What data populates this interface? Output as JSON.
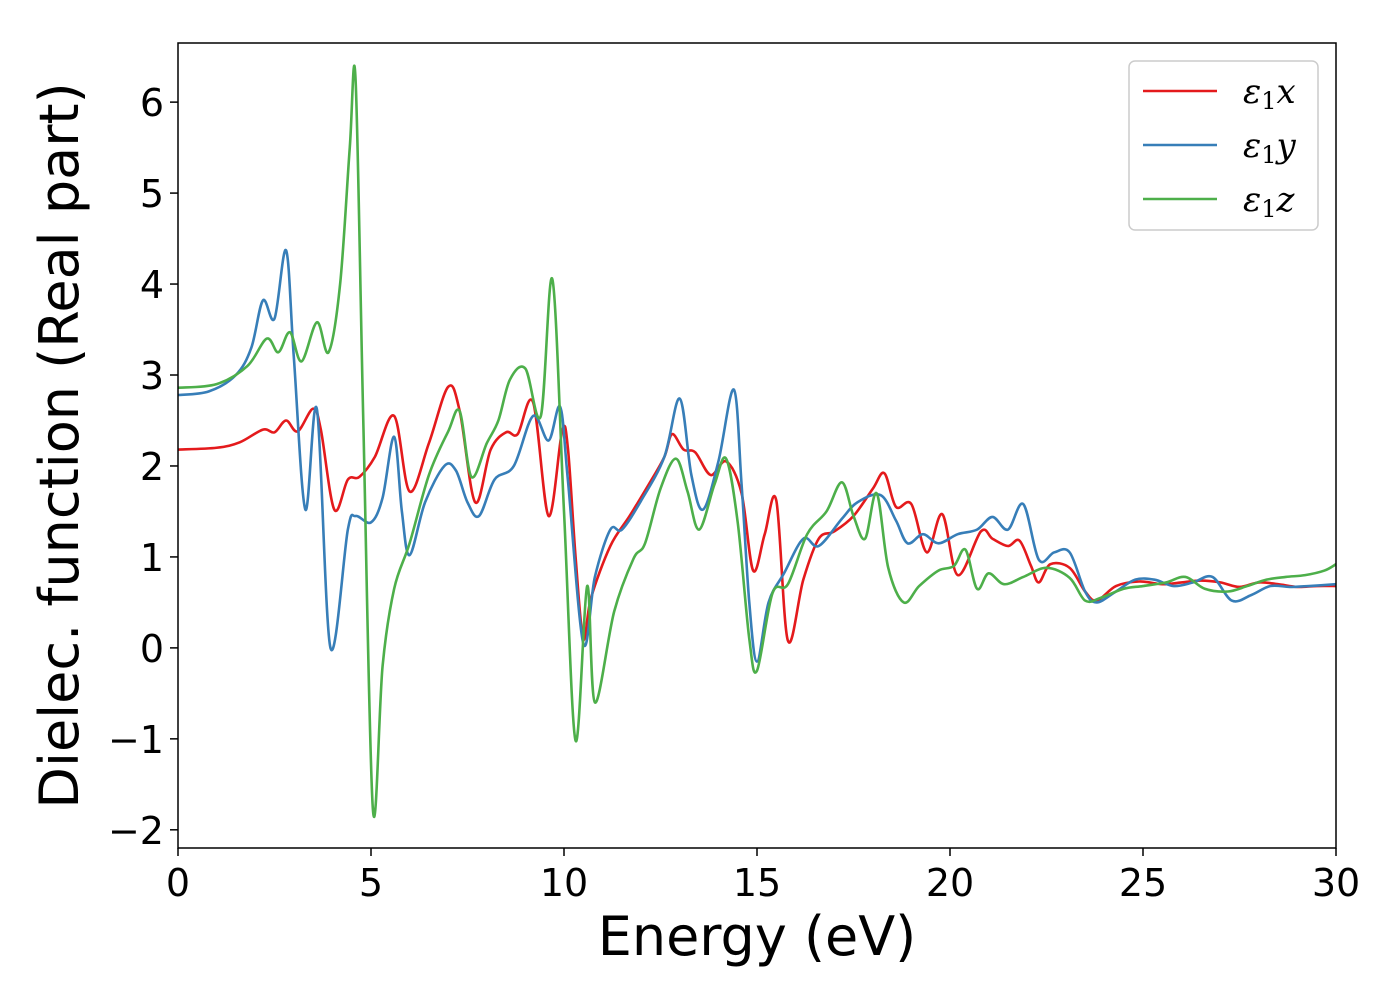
{
  "chart_data": {
    "type": "line",
    "title": "",
    "xlabel": "Energy (eV)",
    "ylabel": "Dielec. function (Real part)",
    "xlim": [
      0,
      30
    ],
    "ylim": [
      -2.2,
      6.65
    ],
    "xticks": [
      0,
      5,
      10,
      15,
      20,
      25,
      30
    ],
    "xtick_labels": [
      "0",
      "5",
      "10",
      "15",
      "20",
      "25",
      "30"
    ],
    "yticks": [
      -2,
      -1,
      0,
      1,
      2,
      3,
      4,
      5,
      6
    ],
    "ytick_labels": [
      "−2",
      "−1",
      "0",
      "1",
      "2",
      "3",
      "4",
      "5",
      "6"
    ],
    "grid": false,
    "legend_position": "top-right",
    "series": [
      {
        "name": "ε1x",
        "legend": {
          "base": "ε",
          "sub": "1",
          "suffix": "x"
        },
        "color": "#e41a1c",
        "points": [
          [
            0,
            2.18
          ],
          [
            1,
            2.2
          ],
          [
            1.6,
            2.26
          ],
          [
            2.2,
            2.4
          ],
          [
            2.5,
            2.37
          ],
          [
            2.8,
            2.5
          ],
          [
            3.1,
            2.38
          ],
          [
            3.5,
            2.63
          ],
          [
            3.7,
            2.4
          ],
          [
            4.05,
            1.52
          ],
          [
            4.4,
            1.85
          ],
          [
            4.7,
            1.88
          ],
          [
            5.1,
            2.1
          ],
          [
            5.6,
            2.55
          ],
          [
            6.0,
            1.72
          ],
          [
            6.5,
            2.25
          ],
          [
            7.0,
            2.87
          ],
          [
            7.3,
            2.6
          ],
          [
            7.7,
            1.6
          ],
          [
            8.1,
            2.18
          ],
          [
            8.5,
            2.37
          ],
          [
            8.8,
            2.35
          ],
          [
            9.2,
            2.7
          ],
          [
            9.6,
            1.45
          ],
          [
            9.95,
            2.38
          ],
          [
            10.1,
            2.2
          ],
          [
            10.3,
            1.0
          ],
          [
            10.5,
            0.1
          ],
          [
            10.7,
            0.55
          ],
          [
            11.2,
            1.12
          ],
          [
            11.7,
            1.45
          ],
          [
            12.2,
            1.8
          ],
          [
            12.6,
            2.1
          ],
          [
            12.8,
            2.35
          ],
          [
            13.1,
            2.18
          ],
          [
            13.4,
            2.15
          ],
          [
            13.8,
            1.9
          ],
          [
            14.2,
            2.05
          ],
          [
            14.6,
            1.7
          ],
          [
            14.9,
            0.85
          ],
          [
            15.2,
            1.25
          ],
          [
            15.5,
            1.62
          ],
          [
            15.8,
            0.08
          ],
          [
            16.2,
            0.75
          ],
          [
            16.6,
            1.2
          ],
          [
            17.0,
            1.28
          ],
          [
            17.5,
            1.45
          ],
          [
            18.0,
            1.75
          ],
          [
            18.3,
            1.92
          ],
          [
            18.6,
            1.55
          ],
          [
            19.0,
            1.58
          ],
          [
            19.4,
            1.05
          ],
          [
            19.8,
            1.47
          ],
          [
            20.2,
            0.8
          ],
          [
            20.8,
            1.28
          ],
          [
            21.1,
            1.2
          ],
          [
            21.5,
            1.12
          ],
          [
            21.8,
            1.18
          ],
          [
            22.1,
            0.9
          ],
          [
            22.3,
            0.72
          ],
          [
            22.6,
            0.92
          ],
          [
            23.1,
            0.88
          ],
          [
            23.5,
            0.62
          ],
          [
            23.8,
            0.52
          ],
          [
            24.3,
            0.68
          ],
          [
            24.9,
            0.73
          ],
          [
            25.5,
            0.7
          ],
          [
            26.0,
            0.72
          ],
          [
            26.5,
            0.74
          ],
          [
            27.0,
            0.72
          ],
          [
            27.5,
            0.67
          ],
          [
            28.0,
            0.72
          ],
          [
            28.5,
            0.7
          ],
          [
            29.0,
            0.67
          ],
          [
            29.5,
            0.68
          ],
          [
            30,
            0.68
          ]
        ]
      },
      {
        "name": "ε1y",
        "legend": {
          "base": "ε",
          "sub": "1",
          "suffix": "y"
        },
        "color": "#377eb8",
        "points": [
          [
            0,
            2.78
          ],
          [
            0.8,
            2.82
          ],
          [
            1.5,
            3.0
          ],
          [
            1.9,
            3.3
          ],
          [
            2.2,
            3.82
          ],
          [
            2.5,
            3.62
          ],
          [
            2.8,
            4.37
          ],
          [
            3.0,
            3.2
          ],
          [
            3.3,
            1.52
          ],
          [
            3.6,
            2.62
          ],
          [
            3.95,
            0.0
          ],
          [
            4.4,
            1.3
          ],
          [
            4.6,
            1.45
          ],
          [
            5.0,
            1.38
          ],
          [
            5.3,
            1.65
          ],
          [
            5.6,
            2.32
          ],
          [
            5.8,
            1.5
          ],
          [
            6.0,
            1.02
          ],
          [
            6.4,
            1.6
          ],
          [
            6.9,
            2.0
          ],
          [
            7.2,
            1.95
          ],
          [
            7.5,
            1.6
          ],
          [
            7.8,
            1.45
          ],
          [
            8.2,
            1.85
          ],
          [
            8.7,
            2.0
          ],
          [
            9.2,
            2.55
          ],
          [
            9.6,
            2.28
          ],
          [
            9.9,
            2.65
          ],
          [
            10.1,
            1.85
          ],
          [
            10.5,
            0.05
          ],
          [
            10.8,
            0.78
          ],
          [
            11.2,
            1.3
          ],
          [
            11.5,
            1.3
          ],
          [
            12.0,
            1.62
          ],
          [
            12.6,
            2.1
          ],
          [
            13.0,
            2.74
          ],
          [
            13.3,
            1.9
          ],
          [
            13.6,
            1.52
          ],
          [
            14.0,
            2.05
          ],
          [
            14.4,
            2.84
          ],
          [
            14.6,
            1.8
          ],
          [
            14.8,
            0.5
          ],
          [
            15.0,
            -0.15
          ],
          [
            15.3,
            0.5
          ],
          [
            15.7,
            0.82
          ],
          [
            16.2,
            1.2
          ],
          [
            16.6,
            1.12
          ],
          [
            17.2,
            1.42
          ],
          [
            17.6,
            1.6
          ],
          [
            18.2,
            1.68
          ],
          [
            18.6,
            1.4
          ],
          [
            18.9,
            1.15
          ],
          [
            19.3,
            1.25
          ],
          [
            19.7,
            1.15
          ],
          [
            20.2,
            1.25
          ],
          [
            20.7,
            1.3
          ],
          [
            21.1,
            1.44
          ],
          [
            21.5,
            1.3
          ],
          [
            21.9,
            1.58
          ],
          [
            22.3,
            0.97
          ],
          [
            22.7,
            1.05
          ],
          [
            23.1,
            1.05
          ],
          [
            23.5,
            0.62
          ],
          [
            23.8,
            0.5
          ],
          [
            24.3,
            0.62
          ],
          [
            24.8,
            0.75
          ],
          [
            25.3,
            0.75
          ],
          [
            25.8,
            0.68
          ],
          [
            26.3,
            0.72
          ],
          [
            26.8,
            0.78
          ],
          [
            27.3,
            0.52
          ],
          [
            27.8,
            0.58
          ],
          [
            28.3,
            0.68
          ],
          [
            28.8,
            0.67
          ],
          [
            29.3,
            0.68
          ],
          [
            30,
            0.7
          ]
        ]
      },
      {
        "name": "ε1z",
        "legend": {
          "base": "ε",
          "sub": "1",
          "suffix": "z"
        },
        "color": "#4daf4a",
        "points": [
          [
            0,
            2.86
          ],
          [
            1.0,
            2.9
          ],
          [
            1.8,
            3.1
          ],
          [
            2.3,
            3.4
          ],
          [
            2.6,
            3.25
          ],
          [
            2.9,
            3.47
          ],
          [
            3.2,
            3.15
          ],
          [
            3.6,
            3.58
          ],
          [
            3.9,
            3.25
          ],
          [
            4.2,
            4.0
          ],
          [
            4.45,
            5.5
          ],
          [
            4.6,
            6.25
          ],
          [
            4.8,
            2.5
          ],
          [
            5.05,
            -1.78
          ],
          [
            5.3,
            -0.2
          ],
          [
            5.6,
            0.65
          ],
          [
            6.0,
            1.15
          ],
          [
            6.5,
            1.9
          ],
          [
            7.0,
            2.38
          ],
          [
            7.3,
            2.6
          ],
          [
            7.6,
            1.88
          ],
          [
            8.0,
            2.25
          ],
          [
            8.3,
            2.5
          ],
          [
            8.6,
            2.95
          ],
          [
            9.0,
            3.07
          ],
          [
            9.4,
            2.55
          ],
          [
            9.7,
            4.05
          ],
          [
            10.0,
            1.5
          ],
          [
            10.3,
            -1.02
          ],
          [
            10.6,
            0.68
          ],
          [
            10.8,
            -0.6
          ],
          [
            11.3,
            0.4
          ],
          [
            11.8,
            0.98
          ],
          [
            12.1,
            1.15
          ],
          [
            12.5,
            1.75
          ],
          [
            12.9,
            2.08
          ],
          [
            13.2,
            1.72
          ],
          [
            13.5,
            1.3
          ],
          [
            13.9,
            1.8
          ],
          [
            14.2,
            2.08
          ],
          [
            14.5,
            1.38
          ],
          [
            14.8,
            0.1
          ],
          [
            15.0,
            -0.25
          ],
          [
            15.4,
            0.6
          ],
          [
            15.8,
            0.7
          ],
          [
            16.3,
            1.25
          ],
          [
            16.8,
            1.5
          ],
          [
            17.2,
            1.82
          ],
          [
            17.5,
            1.45
          ],
          [
            17.8,
            1.2
          ],
          [
            18.1,
            1.7
          ],
          [
            18.4,
            0.88
          ],
          [
            18.8,
            0.5
          ],
          [
            19.2,
            0.68
          ],
          [
            19.7,
            0.85
          ],
          [
            20.1,
            0.9
          ],
          [
            20.4,
            1.08
          ],
          [
            20.7,
            0.65
          ],
          [
            21.0,
            0.82
          ],
          [
            21.4,
            0.7
          ],
          [
            21.9,
            0.78
          ],
          [
            22.5,
            0.88
          ],
          [
            23.1,
            0.77
          ],
          [
            23.5,
            0.52
          ],
          [
            23.9,
            0.55
          ],
          [
            24.5,
            0.65
          ],
          [
            25.0,
            0.68
          ],
          [
            25.6,
            0.72
          ],
          [
            26.1,
            0.78
          ],
          [
            26.6,
            0.65
          ],
          [
            27.2,
            0.62
          ],
          [
            27.7,
            0.68
          ],
          [
            28.2,
            0.75
          ],
          [
            28.7,
            0.78
          ],
          [
            29.2,
            0.8
          ],
          [
            29.7,
            0.85
          ],
          [
            30,
            0.92
          ]
        ]
      }
    ]
  }
}
